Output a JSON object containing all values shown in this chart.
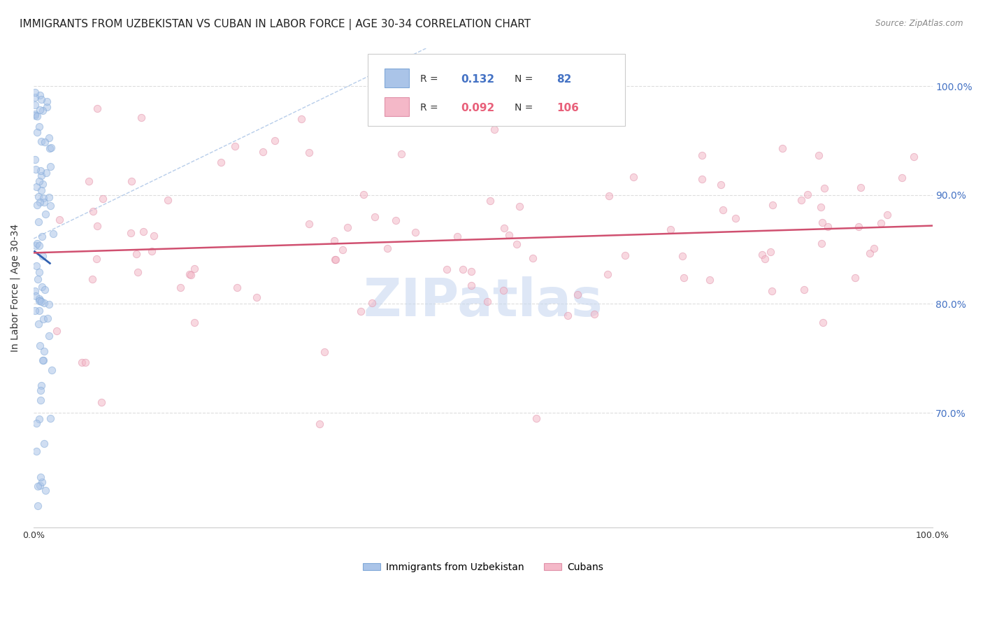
{
  "title": "IMMIGRANTS FROM UZBEKISTAN VS CUBAN IN LABOR FORCE | AGE 30-34 CORRELATION CHART",
  "source": "Source: ZipAtlas.com",
  "ylabel_left": "In Labor Force | Age 30-34",
  "legend_entry1": {
    "label": "Immigrants from Uzbekistan",
    "R": "0.132",
    "N": "82",
    "color": "#aac4e8"
  },
  "legend_entry2": {
    "label": "Cubans",
    "R": "0.092",
    "N": "106",
    "color": "#f4b8c8"
  },
  "trend_color_uz": "#3060b0",
  "trend_color_cu": "#d05070",
  "ref_line_color": "#b0c8e8",
  "watermark_color": "#c8d8f0",
  "background_color": "#ffffff",
  "grid_color": "#dddddd",
  "title_fontsize": 11,
  "axis_label_fontsize": 10,
  "tick_fontsize": 9,
  "scatter_size": 55,
  "scatter_alpha": 0.55,
  "xlim": [
    0.0,
    1.0
  ],
  "ylim": [
    0.595,
    1.035
  ],
  "yticks_right": [
    0.7,
    0.8,
    0.9,
    1.0
  ],
  "ytick_labels_right": [
    "70.0%",
    "80.0%",
    "90.0%",
    "100.0%"
  ]
}
